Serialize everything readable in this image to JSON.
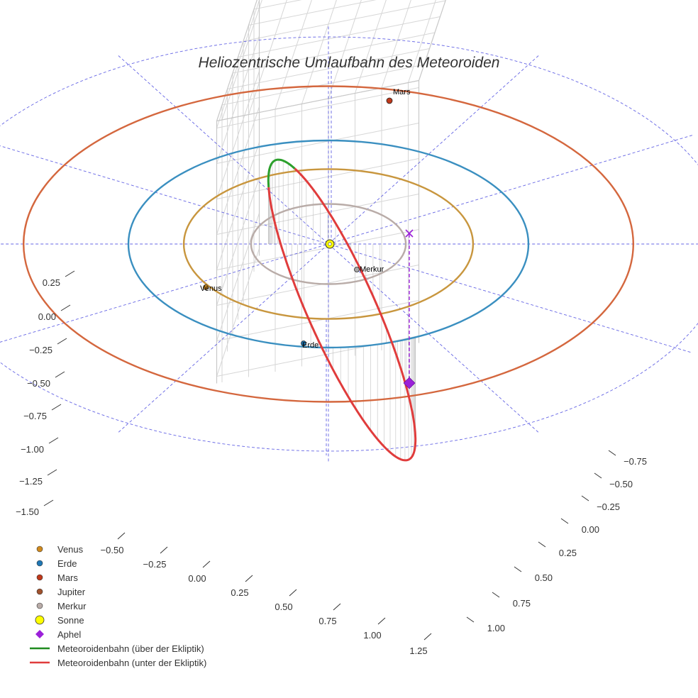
{
  "chart_data": {
    "type": "scatter3d",
    "title": "Heliozentrische Umlaufbahn des Meteoroiden",
    "axes": {
      "x": {
        "range": [
          -0.75,
          1.25
        ],
        "ticks": [
          "−0.50",
          "−0.25",
          "0.00",
          "0.25",
          "0.50",
          "0.75",
          "1.00",
          "1.25"
        ]
      },
      "y": {
        "range": [
          -0.8,
          1.1
        ],
        "ticks": [
          "−0.75",
          "−0.50",
          "−0.25",
          "0.00",
          "0.25",
          "0.50",
          "0.75",
          "1.00"
        ]
      },
      "z": {
        "range": [
          -1.55,
          0.3
        ],
        "ticks": [
          "0.25",
          "0.00",
          "−0.25",
          "−0.50",
          "−0.75",
          "−1.00",
          "−1.25",
          "−1.50"
        ]
      }
    },
    "planet_orbits": [
      {
        "name": "Merkur",
        "radius_au": 0.387,
        "color": "#b9aca8"
      },
      {
        "name": "Venus",
        "radius_au": 0.723,
        "color": "#c8963e"
      },
      {
        "name": "Erde",
        "radius_au": 1.0,
        "color": "#3a8fc0"
      },
      {
        "name": "Mars",
        "radius_au": 1.524,
        "color": "#d4673e"
      }
    ],
    "planet_labels": [
      {
        "name": "Mars",
        "color": "#c0391b"
      },
      {
        "name": "Merkur",
        "color": "#a8a8a8"
      },
      {
        "name": "Venus",
        "color": "#d08a1e"
      },
      {
        "name": "Erde",
        "color": "#1f77b4"
      }
    ],
    "meteoroid_orbit": {
      "above_ecliptic_color": "#2ca02c",
      "below_ecliptic_color": "#e03c3c",
      "aphel_marker_color": "#9b20d9"
    },
    "reference_grid_color": "#4a4ae0",
    "legend": [
      {
        "label": "Venus",
        "symbol": "circle",
        "color": "#d08a1e"
      },
      {
        "label": "Erde",
        "symbol": "circle",
        "color": "#1f77b4"
      },
      {
        "label": "Mars",
        "symbol": "circle",
        "color": "#c0391b"
      },
      {
        "label": "Jupiter",
        "symbol": "circle",
        "color": "#a0522d"
      },
      {
        "label": "Merkur",
        "symbol": "circle",
        "color": "#b9aca8"
      },
      {
        "label": "Sonne",
        "symbol": "circle-large",
        "color": "#ffff00"
      },
      {
        "label": "Aphel",
        "symbol": "diamond",
        "color": "#9b20d9"
      },
      {
        "label": "Meteoroidenbahn (über der Ekliptik)",
        "symbol": "line",
        "color": "#1f8b1f"
      },
      {
        "label": "Meteoroidenbahn (unter der Ekliptik)",
        "symbol": "line",
        "color": "#e03c3c"
      }
    ]
  }
}
